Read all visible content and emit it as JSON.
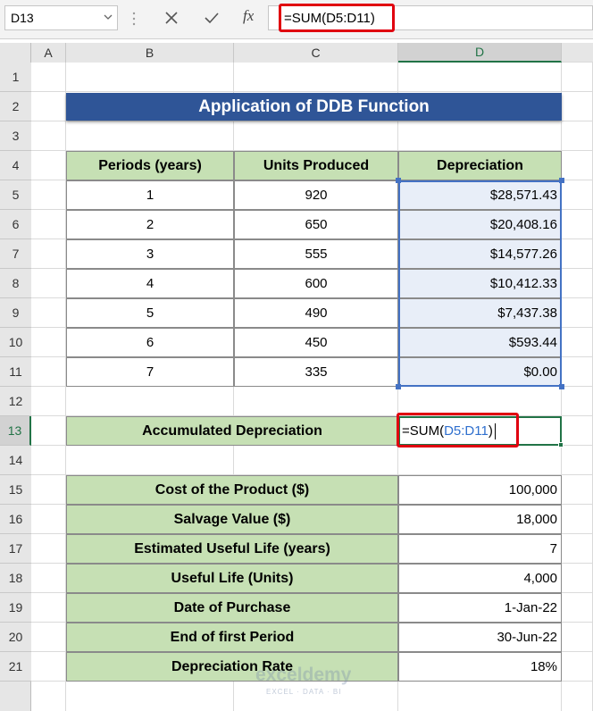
{
  "formula_bar": {
    "name_box": "D13",
    "fx": "fx",
    "formula": "=SUM(D5:D11)"
  },
  "columns": [
    "A",
    "B",
    "C",
    "D"
  ],
  "row_numbers": [
    1,
    2,
    3,
    4,
    5,
    6,
    7,
    8,
    9,
    10,
    11,
    12,
    13,
    14,
    15,
    16,
    17,
    18,
    19,
    20,
    21
  ],
  "title": "Application of DDB Function",
  "table": {
    "header": [
      "Periods (years)",
      "Units Produced",
      "Depreciation"
    ],
    "rows": [
      [
        "1",
        "920",
        "$28,571.43"
      ],
      [
        "2",
        "650",
        "$20,408.16"
      ],
      [
        "3",
        "555",
        "$14,577.26"
      ],
      [
        "4",
        "600",
        "$10,412.33"
      ],
      [
        "5",
        "490",
        "$7,437.38"
      ],
      [
        "6",
        "450",
        "$593.44"
      ],
      [
        "7",
        "335",
        "$0.00"
      ]
    ]
  },
  "summary": {
    "label": "Accumulated Depreciation",
    "formula_parts": [
      "=SUM(",
      "D5:D11",
      ")"
    ]
  },
  "inputs": [
    {
      "label": "Cost of the Product ($)",
      "value": "100,000"
    },
    {
      "label": "Salvage Value ($)",
      "value": "18,000"
    },
    {
      "label": "Estimated Useful Life (years)",
      "value": "7"
    },
    {
      "label": "Useful Life (Units)",
      "value": "4,000"
    },
    {
      "label": "Date of Purchase",
      "value": "1-Jan-22"
    },
    {
      "label": "End of first Period",
      "value": "30-Jun-22"
    },
    {
      "label": "Depreciation Rate",
      "value": "18%"
    }
  ],
  "watermark": {
    "name": "exceldemy",
    "tagline": "EXCEL · DATA · BI"
  }
}
